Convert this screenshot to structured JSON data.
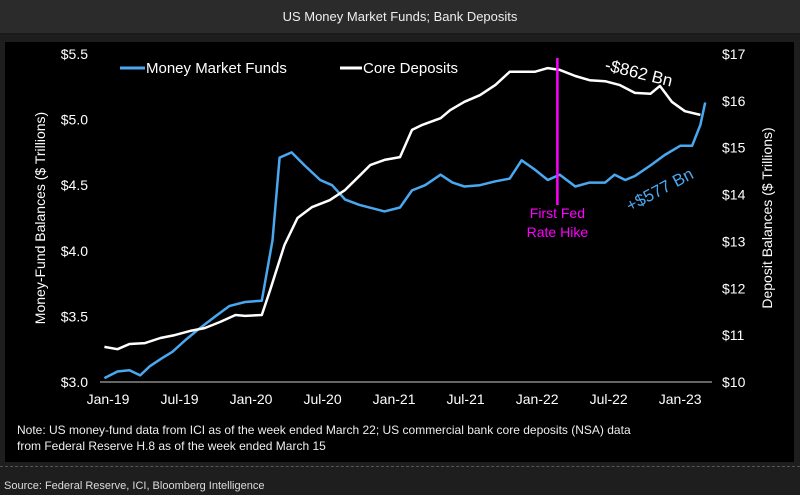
{
  "header": {
    "title": "US Money Market Funds; Bank Deposits"
  },
  "source": "Source: Federal Reserve, ICI, Bloomberg Intelligence",
  "note": {
    "line1": "Note: US money-fund data from ICI as of the week ended March 22; US commercial bank core deposits (NSA) data",
    "line2": "from Federal Reserve H.8 as of the week ended March 15"
  },
  "colors": {
    "mmf": "#4aa8f0",
    "deposits": "#ffffff",
    "fed": "#ff00ff"
  },
  "chart_data": {
    "type": "line",
    "title": "US Money Market Funds; Bank Deposits",
    "x_unit": "months since Jan-2019",
    "xlim": [
      -0.5,
      51
    ],
    "x_ticks": [
      0,
      6,
      12,
      18,
      24,
      30,
      36,
      42,
      48
    ],
    "x_tick_labels": [
      "Jan-19",
      "Jul-19",
      "Jan-20",
      "Jul-20",
      "Jan-21",
      "Jul-21",
      "Jan-22",
      "Jul-22",
      "Jan-23"
    ],
    "y_left": {
      "label": "Money-Fund Balances ($ Trillions)",
      "lim": [
        3.0,
        5.5
      ],
      "ticks": [
        3.0,
        3.5,
        4.0,
        4.5,
        5.0,
        5.5
      ],
      "tick_labels": [
        "$3.0",
        "$3.5",
        "$4.0",
        "$4.5",
        "$5.0",
        "$5.5"
      ]
    },
    "y_right": {
      "label": "Deposit Balances ($ Trillions)",
      "lim": [
        10,
        17
      ],
      "ticks": [
        10,
        11,
        12,
        13,
        14,
        15,
        16,
        17
      ],
      "tick_labels": [
        "$10",
        "$11",
        "$12",
        "$13",
        "$14",
        "$15",
        "$16",
        "$17"
      ]
    },
    "legend": {
      "placement": "top-left",
      "entries": [
        "Money Market Funds",
        "Core Deposits"
      ]
    },
    "series": [
      {
        "name": "Money Market Funds",
        "axis": "left",
        "x": [
          -0.3,
          0.8,
          1.8,
          2.7,
          3.5,
          4.5,
          5.4,
          6.5,
          7.7,
          9.0,
          10.2,
          11.5,
          12.9,
          13.8,
          14.4,
          15.4,
          16.5,
          17.8,
          18.8,
          19.9,
          21.1,
          23.2,
          24.5,
          25.5,
          26.6,
          27.9,
          28.9,
          29.9,
          31.2,
          32.5,
          33.7,
          34.7,
          35.8,
          36.9,
          37.9,
          39.2,
          40.4,
          41.7,
          42.5,
          43.4,
          44.2,
          45.5,
          46.7,
          48.0,
          49.0,
          49.7,
          50.1
        ],
        "y": [
          3.03,
          3.08,
          3.09,
          3.05,
          3.12,
          3.18,
          3.23,
          3.32,
          3.41,
          3.5,
          3.58,
          3.61,
          3.62,
          4.08,
          4.71,
          4.75,
          4.65,
          4.54,
          4.5,
          4.39,
          4.35,
          4.3,
          4.33,
          4.46,
          4.5,
          4.58,
          4.52,
          4.49,
          4.5,
          4.53,
          4.55,
          4.69,
          4.62,
          4.54,
          4.58,
          4.49,
          4.52,
          4.52,
          4.58,
          4.54,
          4.57,
          4.65,
          4.73,
          4.8,
          4.8,
          4.96,
          5.13
        ]
      },
      {
        "name": "Core Deposits",
        "axis": "right",
        "x": [
          -0.3,
          0.8,
          1.8,
          3.1,
          4.4,
          5.6,
          6.9,
          8.1,
          9.4,
          10.7,
          11.5,
          12.9,
          13.6,
          14.8,
          15.9,
          17.1,
          18.6,
          19.9,
          21.1,
          22.0,
          23.2,
          24.5,
          25.5,
          26.3,
          27.9,
          28.7,
          29.9,
          31.2,
          32.5,
          33.7,
          34.7,
          35.8,
          36.9,
          37.9,
          39.2,
          40.4,
          41.7,
          42.9,
          44.2,
          45.5,
          46.3,
          47.3,
          48.4,
          49.7
        ],
        "y": [
          10.75,
          10.7,
          10.81,
          10.83,
          10.94,
          11.0,
          11.09,
          11.15,
          11.28,
          11.43,
          11.41,
          11.43,
          11.96,
          12.92,
          13.5,
          13.73,
          13.88,
          14.1,
          14.4,
          14.63,
          14.74,
          14.8,
          15.38,
          15.48,
          15.63,
          15.8,
          15.98,
          16.12,
          16.34,
          16.62,
          16.62,
          16.62,
          16.7,
          16.66,
          16.53,
          16.44,
          16.42,
          16.34,
          16.17,
          16.15,
          16.32,
          15.98,
          15.78,
          15.7
        ]
      }
    ],
    "annotations": {
      "fed_hike_x": 37.7,
      "fed_label_line1": "First Fed",
      "fed_label_line2": "Rate Hike",
      "deposits_change": "-$862 Bn",
      "mmf_change": "+$577 Bn"
    }
  }
}
